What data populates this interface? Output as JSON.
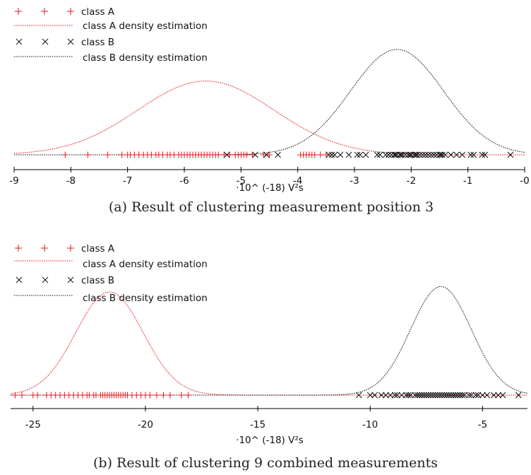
{
  "figures": [
    {
      "caption": "(a) Result of clustering measurement position 3",
      "legend": [
        "class A",
        "class A density estimation",
        "class B",
        "class B density estimation"
      ]
    },
    {
      "caption": "(b) Result of clustering 9 combined measurements",
      "legend": [
        "class A",
        "class A density estimation",
        "class B",
        "class B density estimation"
      ]
    }
  ],
  "colors": {
    "classA": "#e8141c",
    "classB": "#111111",
    "axis": "#000000"
  },
  "chart_data": [
    {
      "type": "scatter",
      "xlabel": "·10^ (-18) V²s",
      "xlim": [
        -9,
        0
      ],
      "ylim": [
        0,
        1.1
      ],
      "xticks": [
        -9,
        -8,
        -7,
        -6,
        -5,
        -4,
        -3,
        -2,
        -1,
        0
      ],
      "xtick_labels": [
        "-9",
        "-8",
        "-7",
        "-6",
        "-5",
        "-4",
        "-3",
        "-2",
        "-1",
        "-0"
      ],
      "series": [
        {
          "name": "class A",
          "marker": "plus",
          "x": [
            -8.1,
            -7.7,
            -7.35,
            -7.1,
            -7.0,
            -6.95,
            -6.88,
            -6.8,
            -6.72,
            -6.65,
            -6.58,
            -6.5,
            -6.45,
            -6.38,
            -6.3,
            -6.25,
            -6.18,
            -6.1,
            -6.05,
            -6.0,
            -5.95,
            -5.9,
            -5.85,
            -5.8,
            -5.75,
            -5.7,
            -5.65,
            -5.6,
            -5.55,
            -5.5,
            -5.45,
            -5.4,
            -5.3,
            -5.2,
            -5.1,
            -5.05,
            -5.0,
            -4.95,
            -4.9,
            -4.8,
            -4.6,
            -4.5,
            -3.95,
            -3.9,
            -3.85,
            -3.8,
            -3.75,
            -3.7,
            -3.6,
            -3.5
          ]
        },
        {
          "name": "class A density estimation",
          "type": "line",
          "mean": -5.62,
          "sd": 1.2,
          "peak": 0.7
        },
        {
          "name": "class B",
          "marker": "cross",
          "x": [
            -5.25,
            -4.75,
            -4.55,
            -4.35,
            -3.45,
            -3.4,
            -3.35,
            -3.25,
            -3.1,
            -2.95,
            -2.9,
            -2.8,
            -2.6,
            -2.55,
            -2.45,
            -2.4,
            -2.35,
            -2.3,
            -2.28,
            -2.25,
            -2.2,
            -2.18,
            -2.15,
            -2.1,
            -2.05,
            -2.02,
            -2.0,
            -1.95,
            -1.92,
            -1.9,
            -1.85,
            -1.8,
            -1.75,
            -1.7,
            -1.65,
            -1.6,
            -1.55,
            -1.5,
            -1.48,
            -1.45,
            -1.4,
            -1.3,
            -1.2,
            -1.1,
            -0.95,
            -0.9,
            -0.75,
            -0.7,
            -0.25
          ]
        },
        {
          "name": "class B density estimation",
          "type": "line",
          "mean": -2.25,
          "sd": 0.82,
          "peak": 1.0
        }
      ]
    },
    {
      "type": "scatter",
      "xlabel": "·10^ (-18) V²s",
      "xlim": [
        -26,
        -3
      ],
      "ylim": [
        0,
        1.1
      ],
      "xticks": [
        -25,
        -20,
        -15,
        -10,
        -5
      ],
      "xtick_labels": [
        "-25",
        "-20",
        "-15",
        "-10",
        "-5"
      ],
      "series": [
        {
          "name": "class A",
          "marker": "plus",
          "x": [
            -25.8,
            -25.5,
            -25.0,
            -24.8,
            -24.4,
            -24.2,
            -24.0,
            -23.8,
            -23.6,
            -23.4,
            -23.2,
            -23.0,
            -22.8,
            -22.6,
            -22.5,
            -22.3,
            -22.2,
            -22.0,
            -21.9,
            -21.8,
            -21.7,
            -21.6,
            -21.5,
            -21.4,
            -21.3,
            -21.2,
            -21.1,
            -21.0,
            -20.9,
            -20.8,
            -20.6,
            -20.4,
            -20.2,
            -20.0,
            -19.8,
            -19.5,
            -19.2,
            -18.9,
            -18.4,
            -18.1
          ]
        },
        {
          "name": "class A density estimation",
          "type": "line",
          "mean": -21.6,
          "sd": 1.5,
          "peak": 0.95
        },
        {
          "name": "class B",
          "marker": "cross",
          "x": [
            -10.5,
            -10.0,
            -9.8,
            -9.5,
            -9.3,
            -9.1,
            -8.9,
            -8.8,
            -8.6,
            -8.4,
            -8.3,
            -8.2,
            -8.0,
            -7.9,
            -7.8,
            -7.7,
            -7.6,
            -7.5,
            -7.4,
            -7.3,
            -7.2,
            -7.1,
            -7.0,
            -6.9,
            -6.8,
            -6.7,
            -6.6,
            -6.5,
            -6.4,
            -6.3,
            -6.2,
            -6.1,
            -6.0,
            -5.9,
            -5.8,
            -5.6,
            -5.5,
            -5.3,
            -5.2,
            -5.0,
            -4.8,
            -4.5,
            -4.3,
            -4.1,
            -3.4
          ]
        },
        {
          "name": "class B density estimation",
          "type": "line",
          "mean": -6.85,
          "sd": 1.35,
          "peak": 1.0
        }
      ]
    }
  ]
}
